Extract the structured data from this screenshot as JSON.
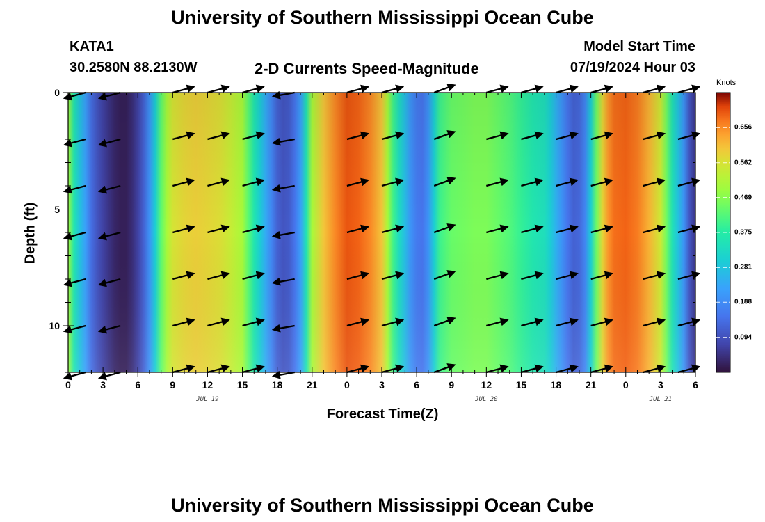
{
  "header": {
    "title": "University of Southern Mississippi Ocean Cube",
    "station": "KATA1",
    "coords": "30.2580N  88.2130W",
    "subtitle": "2-D Currents Speed-Magnitude",
    "model_start_label": "Model Start Time",
    "model_start_value": "07/19/2024 Hour 03"
  },
  "footer": {
    "repeat_title": "University of Southern Mississippi Ocean Cube"
  },
  "colorbar": {
    "unit": "Knots",
    "labels": [
      "0.656",
      "0.562",
      "0.469",
      "0.375",
      "0.281",
      "0.188",
      "0.094"
    ],
    "ticks": [
      0.656,
      0.562,
      0.469,
      0.375,
      0.281,
      0.188,
      0.094
    ],
    "min": 0.0,
    "max": 0.75
  },
  "chart_data": {
    "type": "heatmap",
    "title": "2-D Currents Speed-Magnitude",
    "xlabel": "Forecast Time(Z)",
    "ylabel": "Depth (ft)",
    "xlim": [
      0,
      54
    ],
    "ylim": [
      12,
      0
    ],
    "x_tick_values": [
      0,
      3,
      6,
      9,
      12,
      15,
      18,
      21,
      24,
      27,
      30,
      33,
      36,
      39,
      42,
      45,
      48,
      51,
      54
    ],
    "x_tick_labels": [
      "0",
      "3",
      "6",
      "9",
      "12",
      "15",
      "18",
      "21",
      "0",
      "3",
      "6",
      "9",
      "12",
      "15",
      "18",
      "21",
      "0",
      "3",
      "6"
    ],
    "y_tick_values": [
      0,
      5,
      10
    ],
    "y_tick_labels": [
      "0",
      "5",
      "10"
    ],
    "date_markers": [
      {
        "label": "JUL 19",
        "x": 12
      },
      {
        "label": "JUL 20",
        "x": 36
      },
      {
        "label": "JUL 21",
        "x": 51
      }
    ],
    "speed_profile": {
      "hours": [
        0,
        0.5,
        1,
        1.5,
        2,
        2.5,
        3,
        3.5,
        4,
        4.5,
        5,
        5.5,
        6,
        6.5,
        7,
        7.5,
        8,
        8.5,
        9,
        10,
        11,
        12,
        13,
        14,
        15,
        15.5,
        16,
        16.5,
        17,
        17.5,
        18,
        18.5,
        19,
        19.5,
        20,
        20.5,
        21,
        22,
        23,
        24,
        25,
        26,
        27,
        27.5,
        28,
        28.5,
        29,
        29.5,
        30,
        30.5,
        31,
        31.5,
        32,
        33,
        34,
        35,
        36,
        37,
        38,
        39,
        40,
        41,
        41.5,
        42,
        42.5,
        43,
        43.5,
        44,
        44.5,
        45,
        45.5,
        46,
        46.5,
        47,
        48,
        49,
        50,
        51,
        51.5,
        52,
        52.5,
        53,
        53.5,
        54
      ],
      "speed_knots": [
        0.49,
        0.36,
        0.28,
        0.22,
        0.14,
        0.1,
        0.07,
        0.05,
        0.03,
        0.02,
        0.02,
        0.04,
        0.07,
        0.12,
        0.2,
        0.3,
        0.43,
        0.5,
        0.56,
        0.58,
        0.59,
        0.58,
        0.57,
        0.54,
        0.5,
        0.43,
        0.36,
        0.3,
        0.24,
        0.18,
        0.12,
        0.1,
        0.11,
        0.15,
        0.22,
        0.35,
        0.5,
        0.6,
        0.66,
        0.7,
        0.69,
        0.66,
        0.6,
        0.5,
        0.4,
        0.33,
        0.27,
        0.2,
        0.16,
        0.15,
        0.2,
        0.3,
        0.4,
        0.44,
        0.45,
        0.46,
        0.46,
        0.44,
        0.42,
        0.39,
        0.36,
        0.34,
        0.3,
        0.25,
        0.2,
        0.15,
        0.12,
        0.13,
        0.18,
        0.3,
        0.45,
        0.58,
        0.65,
        0.68,
        0.69,
        0.67,
        0.62,
        0.55,
        0.45,
        0.35,
        0.28,
        0.2,
        0.1,
        0.05
      ]
    },
    "vector_times_hours": [
      1.5,
      4.5,
      9,
      12,
      15,
      19.5,
      24,
      27,
      31.5,
      36,
      39,
      42,
      45,
      49.5,
      52.5
    ],
    "vector_depths_ft": [
      0,
      2,
      4,
      6,
      8,
      10,
      12
    ],
    "vector_directions_deg": [
      195,
      195,
      15,
      15,
      15,
      190,
      15,
      15,
      20,
      15,
      15,
      15,
      15,
      15,
      15
    ]
  },
  "colors": {
    "plot_frame": "#000000",
    "vector": "#000000",
    "gridline": "#ffffff"
  }
}
